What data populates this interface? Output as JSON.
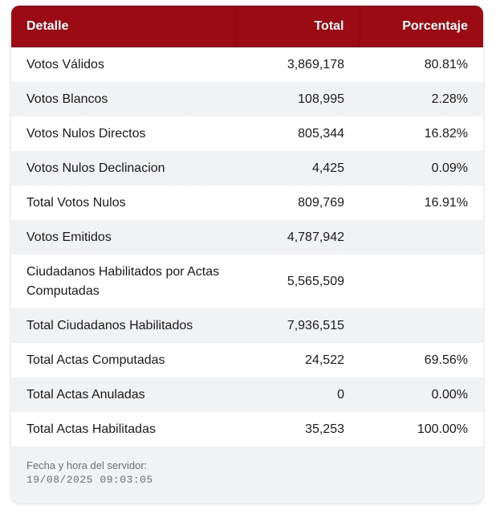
{
  "table": {
    "headers": [
      "Detalle",
      "Total",
      "Porcentaje"
    ],
    "rows": [
      {
        "detalle": "Votos Válidos",
        "total": "3,869,178",
        "porcentaje": "80.81%"
      },
      {
        "detalle": "Votos Blancos",
        "total": "108,995",
        "porcentaje": "2.28%"
      },
      {
        "detalle": "Votos Nulos Directos",
        "total": "805,344",
        "porcentaje": "16.82%"
      },
      {
        "detalle": "Votos Nulos Declinacion",
        "total": "4,425",
        "porcentaje": "0.09%"
      },
      {
        "detalle": "Total Votos Nulos",
        "total": "809,769",
        "porcentaje": "16.91%"
      },
      {
        "detalle": "Votos Emitidos",
        "total": "4,787,942",
        "porcentaje": ""
      },
      {
        "detalle": "Ciudadanos Habilitados por Actas Computadas",
        "total": "5,565,509",
        "porcentaje": ""
      },
      {
        "detalle": "Total Ciudadanos Habilitados",
        "total": "7,936,515",
        "porcentaje": ""
      },
      {
        "detalle": "Total Actas Computadas",
        "total": "24,522",
        "porcentaje": "69.56%"
      },
      {
        "detalle": "Total Actas Anuladas",
        "total": "0",
        "porcentaje": "0.00%"
      },
      {
        "detalle": "Total Actas Habilitadas",
        "total": "35,253",
        "porcentaje": "100.00%"
      }
    ]
  },
  "footer": {
    "label": "Fecha y hora del servidor:",
    "timestamp": "19/08/2025 09:03:05"
  },
  "colors": {
    "header_bg": "#9c0a14",
    "header_text": "#ffffff",
    "row_alt_bg": "#f1f2f4"
  }
}
